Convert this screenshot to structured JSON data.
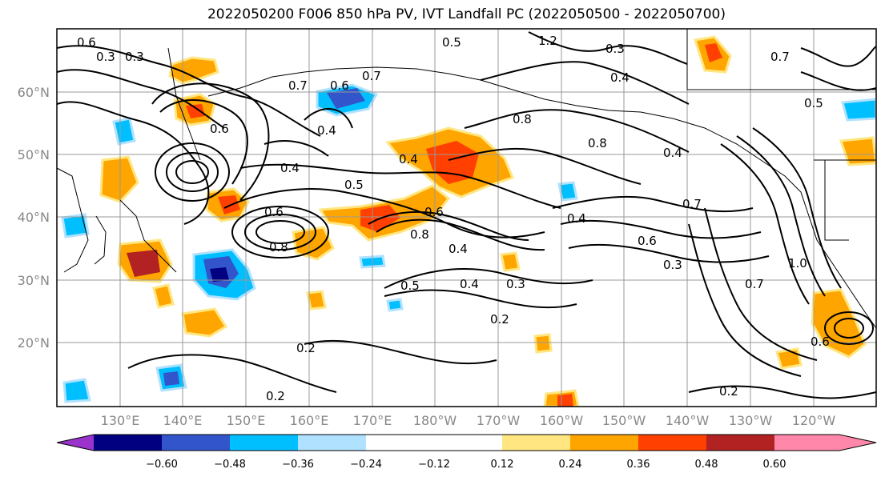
{
  "title": "2022050200 F006 850 hPa PV, IVT Landfall PC (2022050500 - 2022050700)",
  "lat_ticks": [
    "60°N",
    "50°N",
    "40°N",
    "30°N",
    "20°N"
  ],
  "lon_ticks": [
    "130°E",
    "140°E",
    "150°E",
    "160°E",
    "170°E",
    "180°W",
    "170°W",
    "160°W",
    "150°W",
    "140°W",
    "130°W",
    "120°W"
  ],
  "colorbar": {
    "colors": [
      "#9933cc",
      "#000080",
      "#3355cc",
      "#00bfff",
      "#b0e2ff",
      "#ffffff",
      "#ffe680",
      "#ffa500",
      "#ff4000",
      "#b22222",
      "#ff88aa"
    ],
    "tick_labels": [
      "−0.60",
      "−0.48",
      "−0.36",
      "−0.24",
      "−0.12",
      "0.12",
      "0.24",
      "0.36",
      "0.48",
      "0.60"
    ]
  },
  "contour_labels": [
    "0.6",
    "0.3",
    "0.3",
    "0.7",
    "0.6",
    "0.4",
    "0.7",
    "0.6",
    "0.4",
    "0.5",
    "0.4",
    "0.6",
    "0.8",
    "0.8",
    "0.4",
    "0.5",
    "0.6",
    "0.8",
    "0.4",
    "0.8",
    "0.7",
    "0.6",
    "0.3",
    "0.4",
    "0.5",
    "0.4",
    "0.3",
    "0.2",
    "0.2",
    "0.2",
    "1.0",
    "0.7",
    "0.3",
    "0.5",
    "0.7",
    "1.2",
    "0.2",
    "0.4",
    "0.6"
  ]
}
